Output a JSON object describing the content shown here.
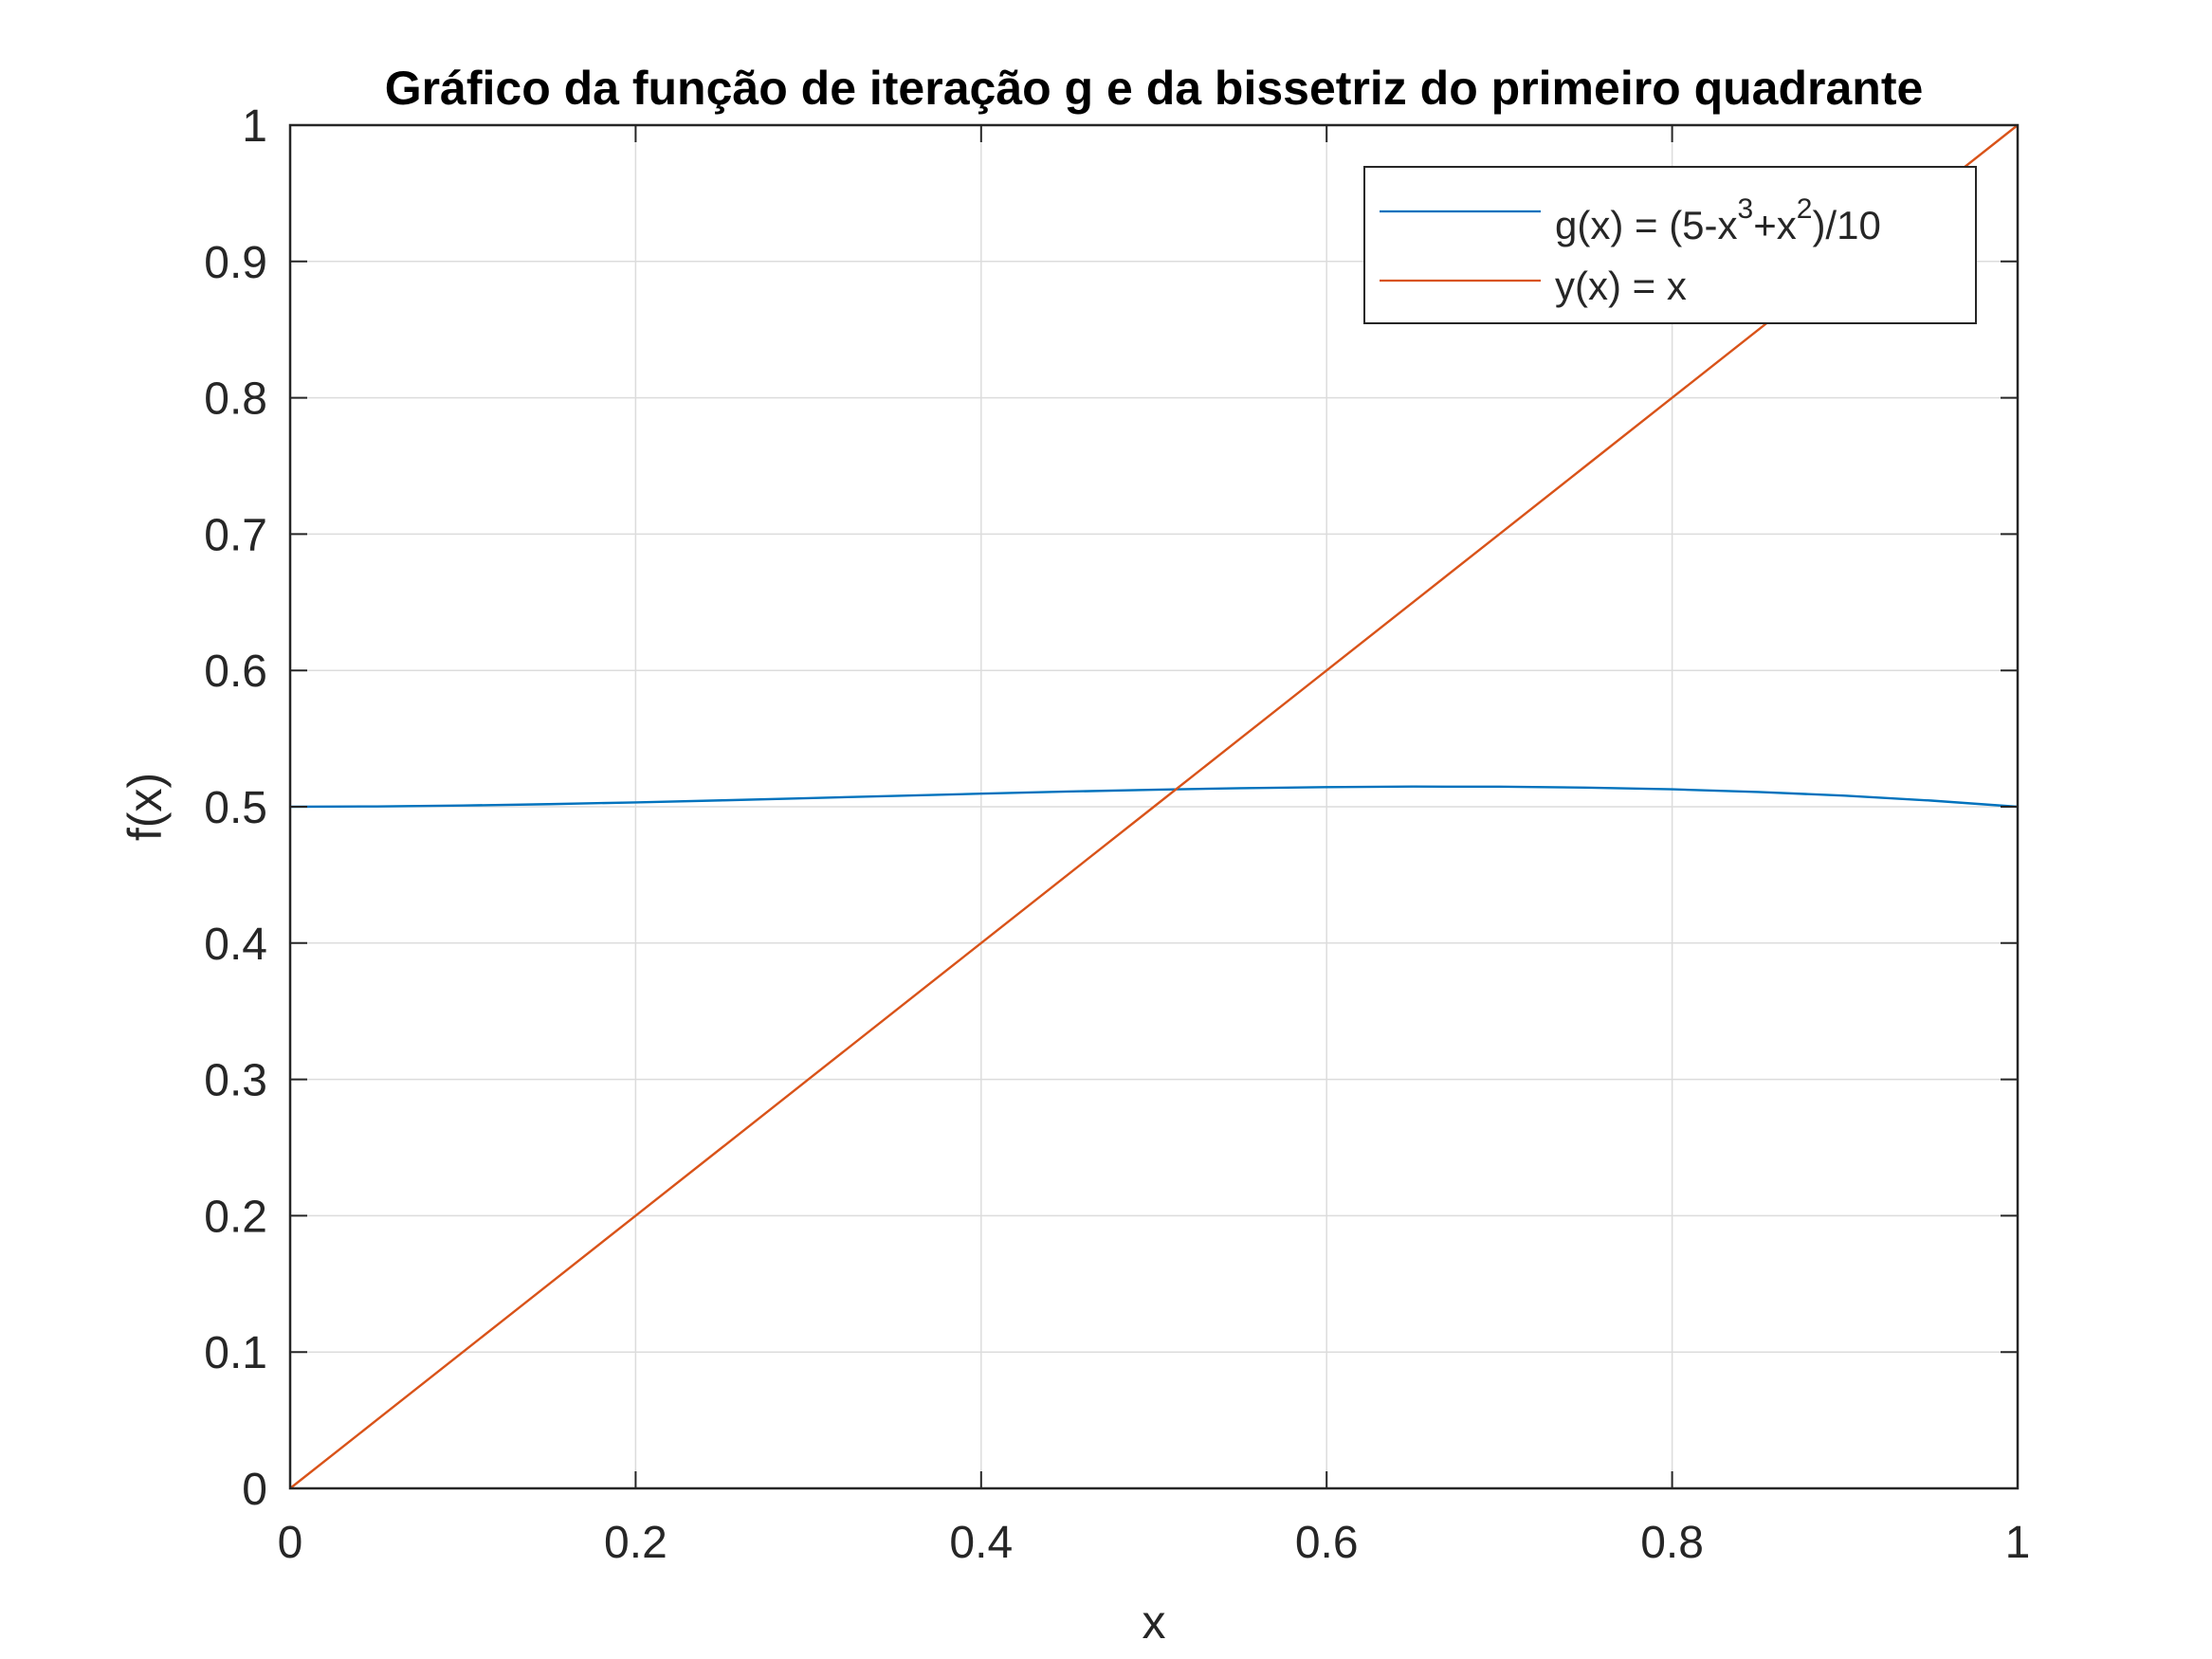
{
  "chart_data": {
    "type": "line",
    "title": "Gráfico da função de iteração g e da bissetriz do primeiro quadrante",
    "xlabel": "x",
    "ylabel": "f(x)",
    "xlim": [
      0,
      1
    ],
    "ylim": [
      0,
      1
    ],
    "grid": true,
    "legend_position": "top-right",
    "x_ticks": [
      "0",
      "0.2",
      "0.4",
      "0.6",
      "0.8",
      "1"
    ],
    "y_ticks": [
      "0",
      "0.1",
      "0.2",
      "0.3",
      "0.4",
      "0.5",
      "0.6",
      "0.7",
      "0.8",
      "0.9",
      "1"
    ],
    "x": [
      0,
      0.05,
      0.1,
      0.15,
      0.2,
      0.25,
      0.3,
      0.35,
      0.4,
      0.45,
      0.5,
      0.55,
      0.6,
      0.65,
      0.7,
      0.75,
      0.8,
      0.85,
      0.9,
      0.95,
      1
    ],
    "series": [
      {
        "name": "g(x) = (5-x3+x2)/10",
        "legend": {
          "pre": "g(x) = (5-x",
          "sup1": "3",
          "mid": "+x",
          "sup2": "2",
          "post": ")/10"
        },
        "color": "#0072BD",
        "values": [
          0.5,
          0.50024,
          0.5009,
          0.50191,
          0.5032,
          0.50469,
          0.5063,
          0.50796,
          0.5096,
          0.51114,
          0.5125,
          0.51361,
          0.5144,
          0.51479,
          0.5147,
          0.51406,
          0.5128,
          0.51084,
          0.5081,
          0.50451,
          0.5
        ]
      },
      {
        "name": "y(x) = x",
        "color": "#D95319",
        "values": [
          0,
          0.05,
          0.1,
          0.15,
          0.2,
          0.25,
          0.3,
          0.35,
          0.4,
          0.45,
          0.5,
          0.55,
          0.6,
          0.65,
          0.7,
          0.75,
          0.8,
          0.85,
          0.9,
          0.95,
          1
        ]
      }
    ]
  }
}
